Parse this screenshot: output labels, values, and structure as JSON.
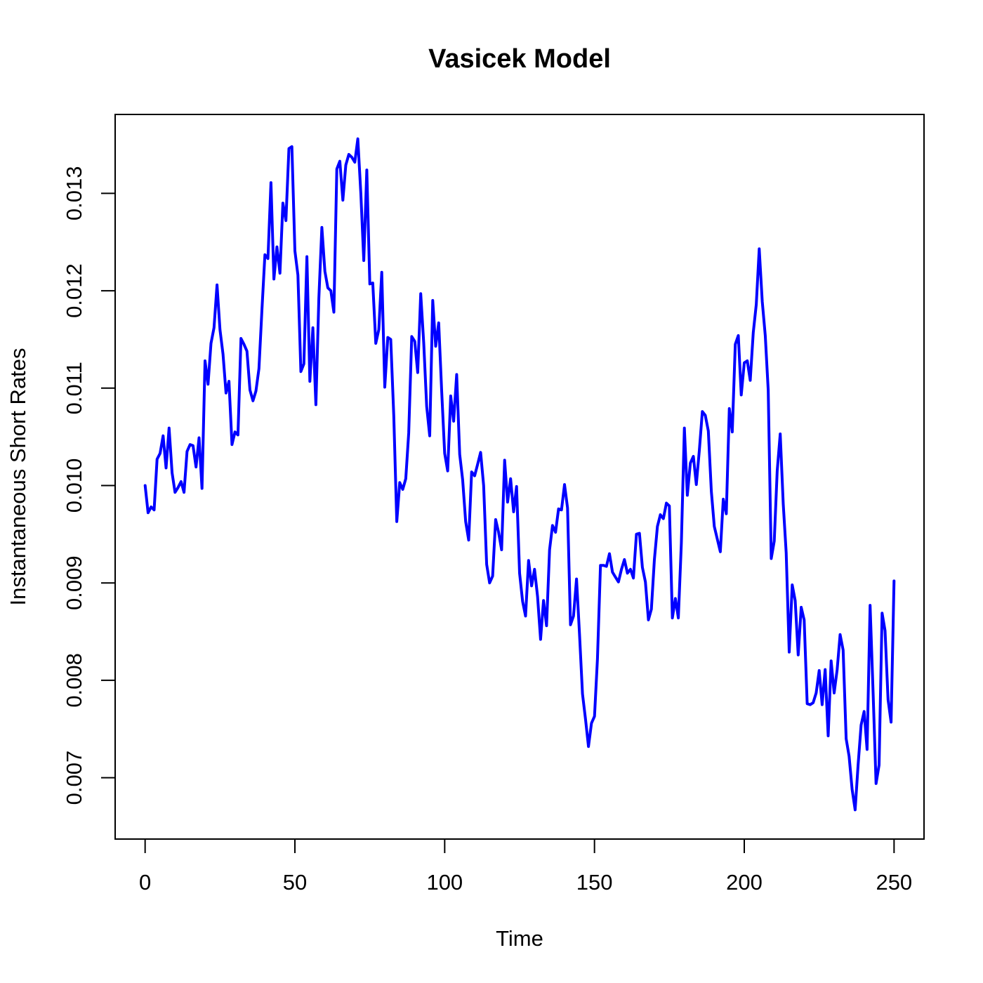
{
  "chart_data": {
    "type": "line",
    "title": "Vasicek Model",
    "xlabel": "Time",
    "ylabel": "Instantaneous Short Rates",
    "xlim": [
      -10,
      260
    ],
    "ylim": [
      0.00637,
      0.01381
    ],
    "xticks": [
      0,
      50,
      100,
      150,
      200,
      250
    ],
    "xtick_labels": [
      "0",
      "50",
      "100",
      "150",
      "200",
      "250"
    ],
    "yticks": [
      0.007,
      0.008,
      0.009,
      0.01,
      0.011,
      0.012,
      0.013
    ],
    "ytick_labels": [
      "0.007",
      "0.008",
      "0.009",
      "0.010",
      "0.011",
      "0.012",
      "0.013"
    ],
    "grid": false,
    "legend": "none",
    "series": [
      {
        "color": "#0000ff",
        "x": [
          0,
          1,
          2,
          3,
          4,
          5,
          6,
          7,
          8,
          9,
          10,
          11,
          12,
          13,
          14,
          15,
          16,
          17,
          18,
          19,
          20,
          21,
          22,
          23,
          24,
          25,
          26,
          27,
          28,
          29,
          30,
          31,
          32,
          33,
          34,
          35,
          36,
          37,
          38,
          39,
          40,
          41,
          42,
          43,
          44,
          45,
          46,
          47,
          48,
          49,
          50,
          51,
          52,
          53,
          54,
          55,
          56,
          57,
          58,
          59,
          60,
          61,
          62,
          63,
          64,
          65,
          66,
          67,
          68,
          69,
          70,
          71,
          72,
          73,
          74,
          75,
          76,
          77,
          78,
          79,
          80,
          81,
          82,
          83,
          84,
          85,
          86,
          87,
          88,
          89,
          90,
          91,
          92,
          93,
          94,
          95,
          96,
          97,
          98,
          99,
          100,
          101,
          102,
          103,
          104,
          105,
          106,
          107,
          108,
          109,
          110,
          111,
          112,
          113,
          114,
          115,
          116,
          117,
          118,
          119,
          120,
          121,
          122,
          123,
          124,
          125,
          126,
          127,
          128,
          129,
          130,
          131,
          132,
          133,
          134,
          135,
          136,
          137,
          138,
          139,
          140,
          141,
          142,
          143,
          144,
          145,
          146,
          147,
          148,
          149,
          150,
          151,
          152,
          153,
          154,
          155,
          156,
          157,
          158,
          159,
          160,
          161,
          162,
          163,
          164,
          165,
          166,
          167,
          168,
          169,
          170,
          171,
          172,
          173,
          174,
          175,
          176,
          177,
          178,
          179,
          180,
          181,
          182,
          183,
          184,
          185,
          186,
          187,
          188,
          189,
          190,
          191,
          192,
          193,
          194,
          195,
          196,
          197,
          198,
          199,
          200,
          201,
          202,
          203,
          204,
          205,
          206,
          207,
          208,
          209,
          210,
          211,
          212,
          213,
          214,
          215,
          216,
          217,
          218,
          219,
          220,
          221,
          222,
          223,
          224,
          225,
          226,
          227,
          228,
          229,
          230,
          231,
          232,
          233,
          234,
          235,
          236,
          237,
          238,
          239,
          240,
          241,
          242,
          243,
          244,
          245,
          246,
          247,
          248,
          249,
          250
        ],
        "y": [
          0.01,
          0.00972,
          0.00978,
          0.00975,
          0.01027,
          0.01033,
          0.01051,
          0.01018,
          0.01059,
          0.01013,
          0.00993,
          0.00998,
          0.01004,
          0.00993,
          0.01035,
          0.01042,
          0.01041,
          0.01019,
          0.01049,
          0.00997,
          0.01128,
          0.01104,
          0.01146,
          0.01162,
          0.01206,
          0.0116,
          0.01135,
          0.01095,
          0.01107,
          0.01042,
          0.01055,
          0.01052,
          0.01151,
          0.01145,
          0.01138,
          0.01098,
          0.01087,
          0.01097,
          0.0112,
          0.01181,
          0.01237,
          0.01233,
          0.01311,
          0.01212,
          0.01245,
          0.01218,
          0.0129,
          0.01272,
          0.01346,
          0.01348,
          0.01241,
          0.01216,
          0.01117,
          0.01125,
          0.01235,
          0.01107,
          0.01162,
          0.01083,
          0.01192,
          0.01265,
          0.0122,
          0.01203,
          0.012,
          0.01178,
          0.01325,
          0.01333,
          0.01293,
          0.01329,
          0.0134,
          0.01337,
          0.01332,
          0.01356,
          0.013,
          0.01231,
          0.01324,
          0.01207,
          0.01208,
          0.01146,
          0.0116,
          0.01219,
          0.01101,
          0.01152,
          0.0115,
          0.01072,
          0.00963,
          0.01003,
          0.00996,
          0.01007,
          0.01054,
          0.01153,
          0.01148,
          0.01116,
          0.01197,
          0.01146,
          0.01081,
          0.01051,
          0.0119,
          0.01143,
          0.01167,
          0.01096,
          0.01033,
          0.01015,
          0.01092,
          0.01066,
          0.01114,
          0.01032,
          0.01006,
          0.00963,
          0.00944,
          0.01014,
          0.0101,
          0.01022,
          0.01034,
          0.01,
          0.00919,
          0.009,
          0.00907,
          0.00965,
          0.00952,
          0.00934,
          0.01026,
          0.00983,
          0.01007,
          0.00973,
          0.00999,
          0.0091,
          0.00881,
          0.00866,
          0.00923,
          0.00897,
          0.00914,
          0.00886,
          0.00842,
          0.00882,
          0.00856,
          0.00934,
          0.00959,
          0.00952,
          0.00976,
          0.00975,
          0.01001,
          0.00977,
          0.00857,
          0.00866,
          0.00904,
          0.00848,
          0.00786,
          0.0076,
          0.00732,
          0.00756,
          0.00763,
          0.00822,
          0.00918,
          0.00918,
          0.00917,
          0.0093,
          0.00911,
          0.00906,
          0.00901,
          0.00914,
          0.00924,
          0.0091,
          0.00914,
          0.00905,
          0.0095,
          0.00951,
          0.00916,
          0.00901,
          0.00862,
          0.00873,
          0.00924,
          0.00958,
          0.0097,
          0.00966,
          0.00982,
          0.00979,
          0.00864,
          0.00884,
          0.00864,
          0.00941,
          0.01059,
          0.0099,
          0.01023,
          0.0103,
          0.01001,
          0.01036,
          0.01076,
          0.01072,
          0.01056,
          0.00994,
          0.00958,
          0.00945,
          0.00932,
          0.00986,
          0.00971,
          0.01079,
          0.01055,
          0.01145,
          0.01154,
          0.01093,
          0.01126,
          0.01128,
          0.01108,
          0.01157,
          0.01186,
          0.01243,
          0.01189,
          0.01154,
          0.01098,
          0.00925,
          0.00943,
          0.01015,
          0.01053,
          0.00981,
          0.00931,
          0.00829,
          0.00898,
          0.00882,
          0.00826,
          0.00875,
          0.00862,
          0.00776,
          0.00775,
          0.00777,
          0.00787,
          0.0081,
          0.00775,
          0.00811,
          0.00743,
          0.0082,
          0.00787,
          0.00811,
          0.00847,
          0.00831,
          0.0074,
          0.00722,
          0.00688,
          0.00667,
          0.00713,
          0.00754,
          0.00768,
          0.00729,
          0.00877,
          0.00787,
          0.00694,
          0.00713,
          0.00869,
          0.00851,
          0.0078,
          0.00757,
          0.00902
        ]
      }
    ]
  }
}
